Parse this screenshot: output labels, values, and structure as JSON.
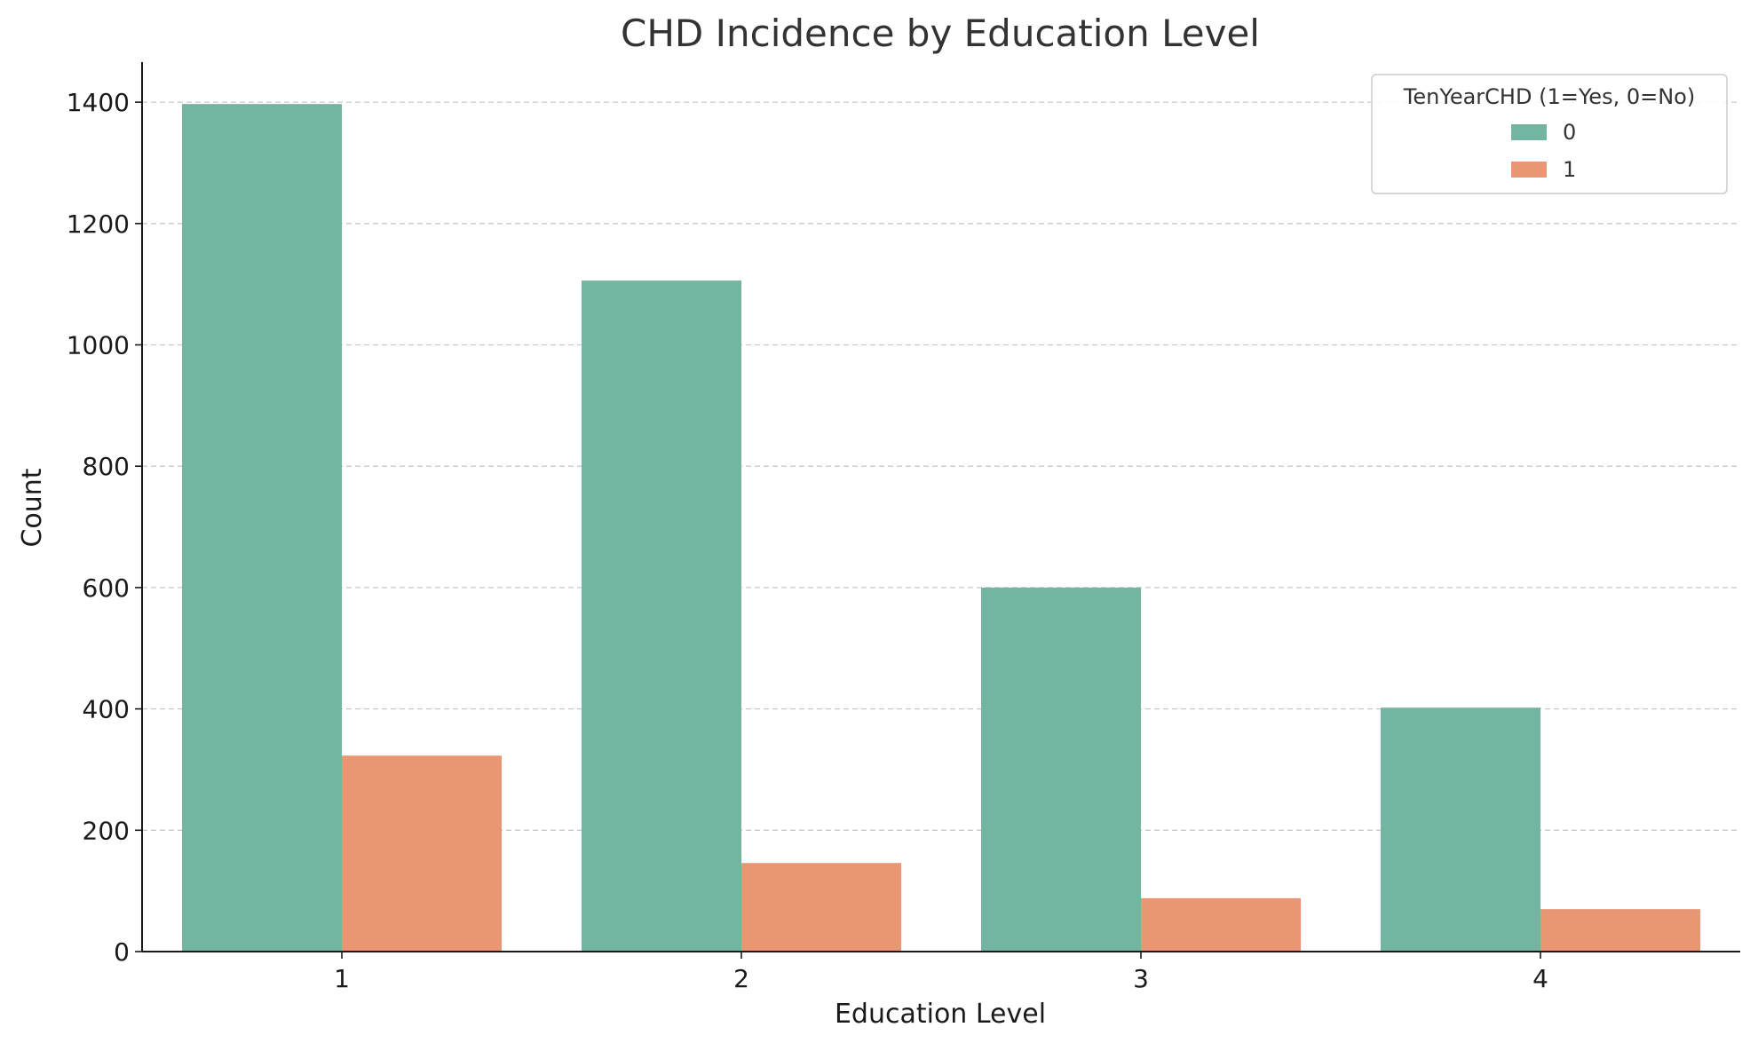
{
  "chart_data": {
    "type": "bar",
    "title": "CHD Incidence by Education Level",
    "xlabel": "Education Level",
    "ylabel": "Count",
    "categories": [
      "1",
      "2",
      "3",
      "4"
    ],
    "series": [
      {
        "name": "0",
        "values": [
          1397,
          1106,
          600,
          402
        ],
        "color": "#73b5a0"
      },
      {
        "name": "1",
        "values": [
          323,
          146,
          88,
          70
        ],
        "color": "#e99675"
      }
    ],
    "ylim": [
      0,
      1466
    ],
    "yticks": [
      0,
      200,
      400,
      600,
      800,
      1000,
      1200,
      1400
    ],
    "grid": "y-dashed",
    "legend": {
      "title": "TenYearCHD (1=Yes, 0=No)",
      "placement": "top-right"
    }
  }
}
